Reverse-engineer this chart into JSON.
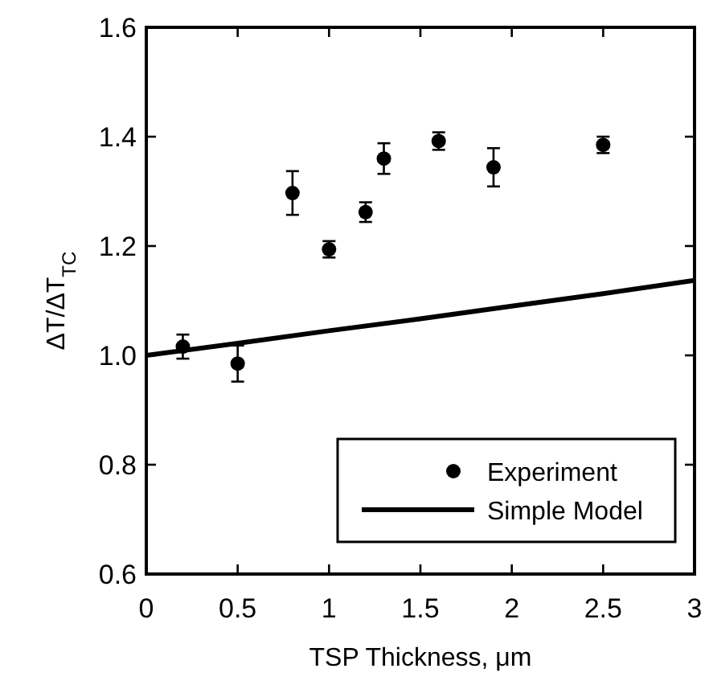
{
  "chart_data": {
    "type": "scatter",
    "xlabel": "TSP Thickness,  μm",
    "ylabel": "ΔT/ΔT$_{TC}$",
    "xlim": [
      0,
      3
    ],
    "xticks": [
      0,
      0.5,
      1,
      1.5,
      2,
      2.5,
      3
    ],
    "ylim": [
      0.6,
      1.6
    ],
    "yticks": [
      {
        "value": 0.6,
        "label": "0.6"
      },
      {
        "value": 0.8,
        "label": "0.8"
      },
      {
        "value": 1.0,
        "label": "1.0"
      },
      {
        "value": 1.2,
        "label": "1.2"
      },
      {
        "value": 1.4,
        "label": "1.4"
      },
      {
        "value": 1.6,
        "label": "1.6"
      }
    ],
    "legend": "bottom right",
    "grid": false,
    "series": [
      {
        "name": "Experiment",
        "marker": "circle",
        "color": "#000000",
        "x": [
          0.2,
          0.5,
          0.8,
          1.0,
          1.2,
          1.3,
          1.6,
          1.9,
          2.5
        ],
        "values": [
          1.016,
          0.985,
          1.297,
          1.194,
          1.262,
          1.36,
          1.392,
          1.344,
          1.385
        ],
        "errors": [
          0.022,
          0.033,
          0.04,
          0.015,
          0.018,
          0.028,
          0.016,
          0.035,
          0.015
        ]
      },
      {
        "name": "Simple Model",
        "type": "line",
        "marker": "none",
        "color": "#000000",
        "x": [
          0,
          0.5,
          1,
          1.5,
          2,
          2.5,
          3
        ],
        "values": [
          1.0,
          1.022,
          1.045,
          1.067,
          1.09,
          1.113,
          1.137
        ]
      }
    ]
  }
}
